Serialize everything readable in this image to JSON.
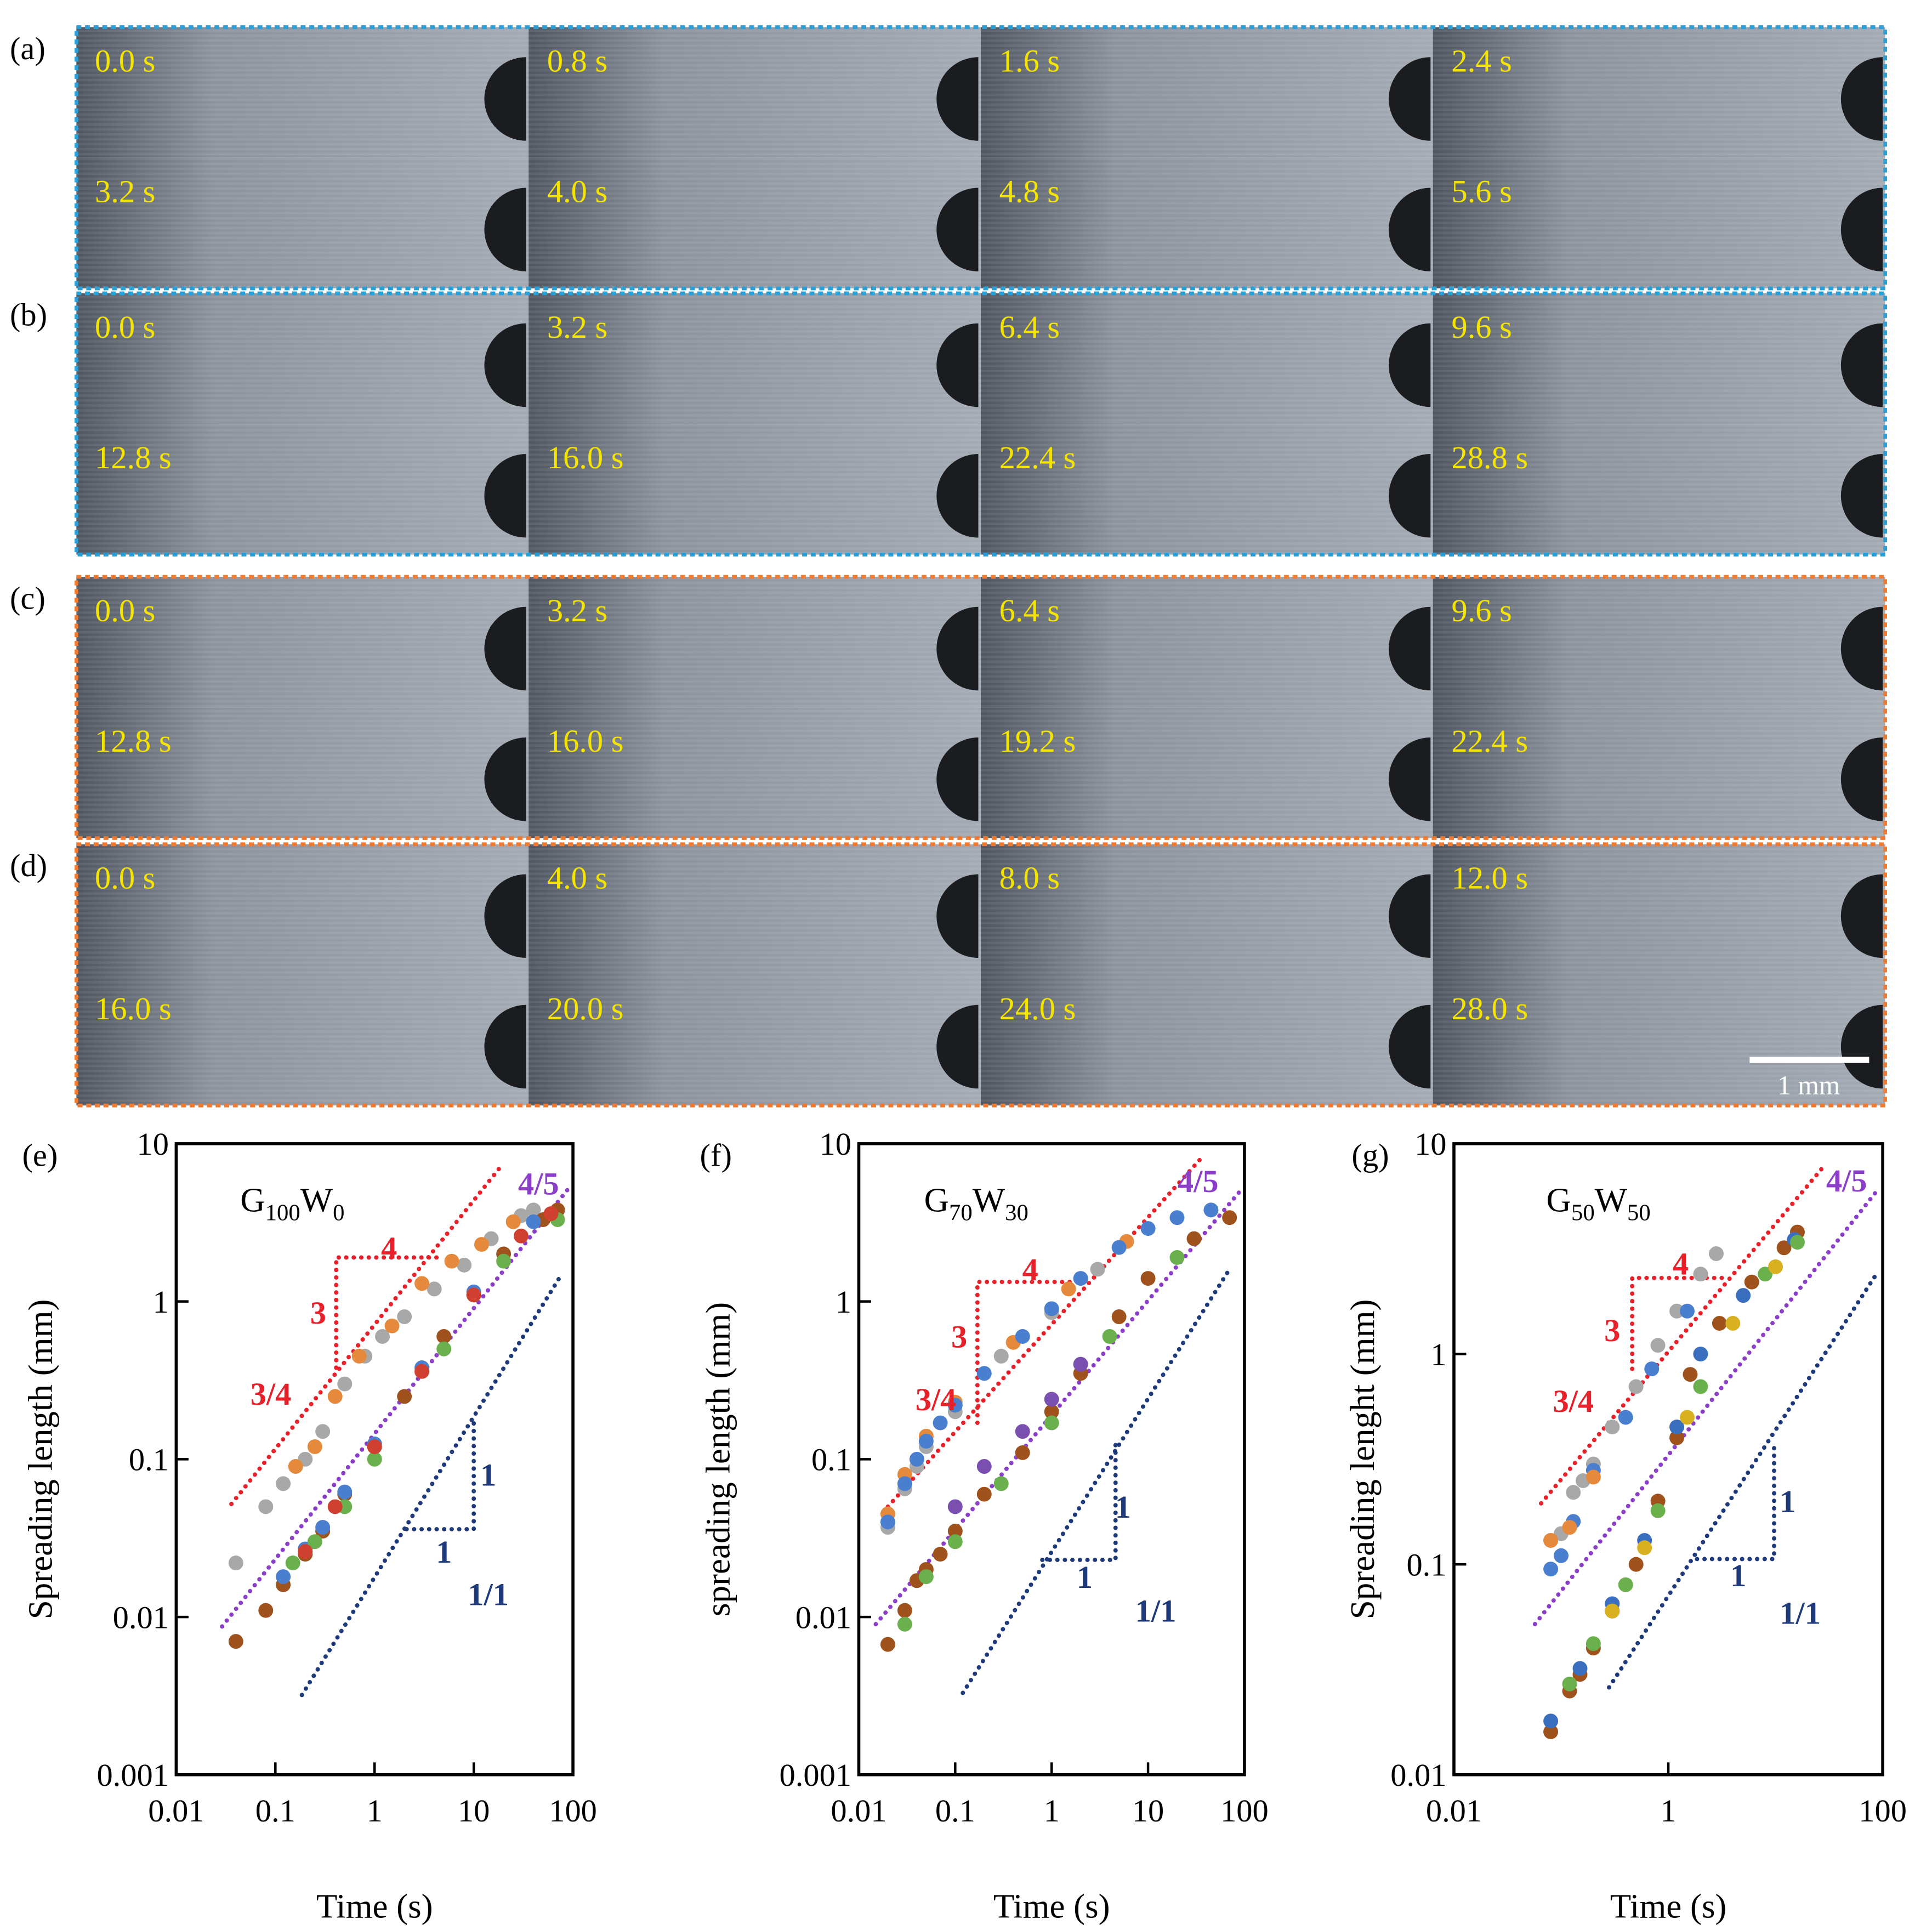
{
  "panels": [
    {
      "label": "(a)",
      "frames": [
        "0.0 s",
        "0.8 s",
        "1.6 s",
        "2.4 s",
        "3.2 s",
        "4.0 s",
        "4.8 s",
        "5.6 s"
      ],
      "border": "#2a9fd8"
    },
    {
      "label": "(b)",
      "frames": [
        "0.0 s",
        "3.2 s",
        "6.4 s",
        "9.6 s",
        "12.8 s",
        "16.0 s",
        "22.4 s",
        "28.8 s"
      ],
      "border": "#2a9fd8"
    },
    {
      "label": "(c)",
      "frames": [
        "0.0 s",
        "3.2 s",
        "6.4 s",
        "9.6 s",
        "12.8 s",
        "16.0 s",
        "19.2 s",
        "22.4 s"
      ],
      "border": "#f07a30"
    },
    {
      "label": "(d)",
      "frames": [
        "0.0 s",
        "4.0 s",
        "8.0 s",
        "12.0 s",
        "16.0 s",
        "20.0 s",
        "24.0 s",
        "28.0 s"
      ],
      "border": "#f07a30"
    }
  ],
  "scale_bar": "1 mm",
  "chart_data": [
    {
      "type": "scatter",
      "label": "(e)",
      "title": [
        "G",
        "100",
        "W",
        "0"
      ],
      "x_label": "Time (s)",
      "y_label": "Spreading length (mm)",
      "log_x": true,
      "log_y": true,
      "xlim": [
        0.01,
        100
      ],
      "ylim": [
        0.001,
        10
      ],
      "xticks": [
        0.01,
        0.1,
        1,
        10,
        100
      ],
      "yticks": [
        0.001,
        0.01,
        0.1,
        1,
        10
      ],
      "series": [
        {
          "color": "#a8a8a8",
          "x": [
            0.04,
            0.08,
            0.12,
            0.2,
            0.3,
            0.5,
            0.8,
            1.2,
            2,
            4,
            8,
            15,
            30,
            40
          ],
          "values": [
            0.022,
            0.05,
            0.07,
            0.1,
            0.15,
            0.3,
            0.45,
            0.6,
            0.8,
            1.2,
            1.7,
            2.5,
            3.5,
            3.8
          ]
        },
        {
          "color": "#e58a3c",
          "x": [
            0.16,
            0.25,
            0.4,
            0.7,
            1.5,
            3,
            6,
            12,
            25
          ],
          "values": [
            0.09,
            0.12,
            0.25,
            0.45,
            0.7,
            1.3,
            1.8,
            2.3,
            3.2
          ]
        },
        {
          "color": "#a0521d",
          "x": [
            0.04,
            0.08,
            0.12,
            0.2,
            0.3,
            0.5,
            1,
            2,
            5,
            10,
            20,
            50,
            70
          ],
          "values": [
            0.007,
            0.011,
            0.016,
            0.025,
            0.035,
            0.06,
            0.12,
            0.25,
            0.6,
            1.1,
            2,
            3.3,
            3.8
          ]
        },
        {
          "color": "#4a7fcf",
          "x": [
            0.12,
            0.2,
            0.3,
            0.5,
            1,
            3,
            10,
            40
          ],
          "values": [
            0.018,
            0.027,
            0.037,
            0.062,
            0.125,
            0.38,
            1.15,
            3.2
          ]
        },
        {
          "color": "#6ab04c",
          "x": [
            0.15,
            0.25,
            0.5,
            1,
            5,
            20,
            70
          ],
          "values": [
            0.022,
            0.03,
            0.05,
            0.1,
            0.5,
            1.8,
            3.3
          ]
        },
        {
          "color": "#d04030",
          "x": [
            0.2,
            0.4,
            1,
            3,
            10,
            30,
            60
          ],
          "values": [
            0.026,
            0.05,
            0.12,
            0.36,
            1.1,
            2.6,
            3.6
          ]
        }
      ],
      "ref_lines": [
        {
          "color": "#e8202a",
          "x": [
            0.036,
            19.5
          ],
          "y": [
            0.052,
            7.4
          ]
        },
        {
          "color": "#8b3fc8",
          "x": [
            0.029,
            88
          ],
          "y": [
            0.0087,
            5.1
          ]
        },
        {
          "color": "#1f3a7a",
          "x": [
            0.185,
            75
          ],
          "y": [
            0.0032,
            1.45
          ]
        }
      ],
      "triangles": [
        {
          "color": "#e8202a",
          "x": [
            0.41,
            0.41,
            4.3
          ],
          "y": [
            0.38,
            1.9,
            1.9
          ]
        },
        {
          "color": "#1f3a7a",
          "x": [
            2.1,
            10,
            10
          ],
          "y": [
            0.036,
            0.036,
            0.18
          ]
        }
      ],
      "annotations": [
        {
          "text": "4",
          "x": 1.4,
          "y": 2.2,
          "color": "#e8202a"
        },
        {
          "text": "3",
          "x": 0.27,
          "y": 0.85,
          "color": "#e8202a"
        },
        {
          "text": "3/4",
          "x": 0.09,
          "y": 0.26,
          "color": "#e8202a"
        },
        {
          "text": "4/5",
          "x": 45,
          "y": 5.6,
          "color": "#8b3fc8"
        },
        {
          "text": "1",
          "x": 14,
          "y": 0.08,
          "color": "#1f3a7a"
        },
        {
          "text": "1",
          "x": 5,
          "y": 0.026,
          "color": "#1f3a7a"
        },
        {
          "text": "1/1",
          "x": 14,
          "y": 0.014,
          "color": "#1f3a7a"
        }
      ]
    },
    {
      "type": "scatter",
      "label": "(f)",
      "title": [
        "G",
        "70",
        "W",
        "30"
      ],
      "x_label": "Time (s)",
      "y_label": "spreading length (mm)",
      "log_x": true,
      "log_y": true,
      "xlim": [
        0.01,
        100
      ],
      "ylim": [
        0.001,
        10
      ],
      "xticks": [
        0.01,
        0.1,
        1,
        10,
        100
      ],
      "yticks": [
        0.001,
        0.01,
        0.1,
        1,
        10
      ],
      "series": [
        {
          "color": "#a8a8a8",
          "x": [
            0.02,
            0.03,
            0.04,
            0.05,
            0.1,
            0.3,
            1,
            3
          ],
          "values": [
            0.037,
            0.065,
            0.09,
            0.12,
            0.2,
            0.45,
            0.85,
            1.6
          ]
        },
        {
          "color": "#e58a3c",
          "x": [
            0.02,
            0.03,
            0.05,
            0.1,
            0.4,
            1.5,
            6
          ],
          "values": [
            0.045,
            0.08,
            0.14,
            0.23,
            0.55,
            1.2,
            2.4
          ]
        },
        {
          "color": "#4a7fcf",
          "x": [
            0.02,
            0.03,
            0.04,
            0.05,
            0.07,
            0.1,
            0.2,
            0.5,
            1,
            2,
            5,
            10,
            20,
            45
          ],
          "values": [
            0.04,
            0.07,
            0.1,
            0.13,
            0.17,
            0.22,
            0.35,
            0.6,
            0.9,
            1.4,
            2.2,
            2.9,
            3.4,
            3.8
          ]
        },
        {
          "color": "#a0521d",
          "x": [
            0.02,
            0.03,
            0.04,
            0.05,
            0.07,
            0.1,
            0.2,
            0.5,
            1,
            2,
            5,
            10,
            30,
            70
          ],
          "values": [
            0.0067,
            0.011,
            0.017,
            0.02,
            0.025,
            0.035,
            0.06,
            0.11,
            0.2,
            0.35,
            0.8,
            1.4,
            2.5,
            3.4
          ]
        },
        {
          "color": "#6ab04c",
          "x": [
            0.03,
            0.05,
            0.1,
            0.3,
            1,
            4,
            20
          ],
          "values": [
            0.009,
            0.018,
            0.03,
            0.07,
            0.17,
            0.6,
            1.9
          ]
        },
        {
          "color": "#7a4fb0",
          "x": [
            0.1,
            0.2,
            0.5,
            1,
            2
          ],
          "values": [
            0.05,
            0.09,
            0.15,
            0.24,
            0.4
          ]
        }
      ],
      "ref_lines": [
        {
          "color": "#e8202a",
          "x": [
            0.02,
            35
          ],
          "y": [
            0.05,
            8
          ]
        },
        {
          "color": "#8b3fc8",
          "x": [
            0.015,
            90
          ],
          "y": [
            0.009,
            5
          ]
        },
        {
          "color": "#1f3a7a",
          "x": [
            0.12,
            70
          ],
          "y": [
            0.0033,
            1.6
          ]
        }
      ],
      "triangles": [
        {
          "color": "#e8202a",
          "x": [
            0.17,
            0.17,
            2.1
          ],
          "y": [
            0.17,
            1.33,
            1.33
          ]
        },
        {
          "color": "#1f3a7a",
          "x": [
            0.8,
            4.6,
            4.6
          ],
          "y": [
            0.023,
            0.023,
            0.13
          ]
        }
      ],
      "annotations": [
        {
          "text": "4",
          "x": 0.6,
          "y": 1.6,
          "color": "#e8202a"
        },
        {
          "text": "3",
          "x": 0.11,
          "y": 0.6,
          "color": "#e8202a"
        },
        {
          "text": "3/4",
          "x": 0.063,
          "y": 0.24,
          "color": "#e8202a"
        },
        {
          "text": "4/5",
          "x": 33,
          "y": 5.8,
          "color": "#8b3fc8"
        },
        {
          "text": "1",
          "x": 5.5,
          "y": 0.05,
          "color": "#1f3a7a"
        },
        {
          "text": "1",
          "x": 2.2,
          "y": 0.018,
          "color": "#1f3a7a"
        },
        {
          "text": "1/1",
          "x": 12,
          "y": 0.011,
          "color": "#1f3a7a"
        }
      ]
    },
    {
      "type": "scatter",
      "label": "(g)",
      "title": [
        "G",
        "50",
        "W",
        "50"
      ],
      "x_label": "Time (s)",
      "y_label": "Spreading lenght (mm)",
      "log_x": true,
      "log_y": true,
      "xlim": [
        0.01,
        100
      ],
      "ylim": [
        0.01,
        10
      ],
      "xticks": [
        0.01,
        1,
        100
      ],
      "yticks": [
        0.01,
        0.1,
        1,
        10
      ],
      "series": [
        {
          "color": "#a8a8a8",
          "x": [
            0.08,
            0.1,
            0.13,
            0.16,
            0.2,
            0.3,
            0.5,
            0.8,
            1.2,
            2,
            2.8
          ],
          "values": [
            0.13,
            0.14,
            0.22,
            0.25,
            0.3,
            0.45,
            0.7,
            1.1,
            1.6,
            2.4,
            3
          ]
        },
        {
          "color": "#4a7fcf",
          "x": [
            0.08,
            0.1,
            0.13,
            0.2,
            0.4,
            0.7,
            1.5
          ],
          "values": [
            0.095,
            0.11,
            0.16,
            0.28,
            0.5,
            0.85,
            1.6
          ]
        },
        {
          "color": "#e58a3c",
          "x": [
            0.08,
            0.12,
            0.2
          ],
          "values": [
            0.13,
            0.15,
            0.26
          ]
        },
        {
          "color": "#a0521d",
          "x": [
            0.08,
            0.12,
            0.15,
            0.2,
            0.3,
            0.5,
            0.8,
            1.2,
            1.6,
            3,
            6,
            12,
            16
          ],
          "values": [
            0.016,
            0.025,
            0.03,
            0.04,
            0.06,
            0.1,
            0.2,
            0.4,
            0.8,
            1.4,
            2.2,
            3.2,
            3.8
          ]
        },
        {
          "color": "#3a6fbf",
          "x": [
            0.08,
            0.15,
            0.3,
            0.6,
            1.2,
            2,
            5,
            15
          ],
          "values": [
            0.018,
            0.032,
            0.065,
            0.13,
            0.45,
            1,
            1.9,
            3.5
          ]
        },
        {
          "color": "#6ab04c",
          "x": [
            0.12,
            0.2,
            0.4,
            0.8,
            2,
            8,
            16
          ],
          "values": [
            0.027,
            0.042,
            0.08,
            0.18,
            0.7,
            2.4,
            3.4
          ]
        },
        {
          "color": "#d8b020",
          "x": [
            0.3,
            0.6,
            1.5,
            4,
            10
          ],
          "values": [
            0.06,
            0.12,
            0.5,
            1.4,
            2.6
          ]
        }
      ],
      "ref_lines": [
        {
          "color": "#e8202a",
          "x": [
            0.065,
            27
          ],
          "y": [
            0.195,
            7.6
          ]
        },
        {
          "color": "#8b3fc8",
          "x": [
            0.057,
            89
          ],
          "y": [
            0.052,
            6
          ]
        },
        {
          "color": "#1f3a7a",
          "x": [
            0.28,
            85
          ],
          "y": [
            0.026,
            2.35
          ]
        }
      ],
      "triangles": [
        {
          "color": "#e8202a",
          "x": [
            0.46,
            0.46,
            3.6
          ],
          "y": [
            0.85,
            2.3,
            2.3
          ]
        },
        {
          "color": "#1f3a7a",
          "x": [
            1.85,
            9.7,
            9.7
          ],
          "y": [
            0.106,
            0.106,
            0.38
          ]
        }
      ],
      "annotations": [
        {
          "text": "4",
          "x": 1.3,
          "y": 2.7,
          "color": "#e8202a"
        },
        {
          "text": "3",
          "x": 0.3,
          "y": 1.3,
          "color": "#e8202a"
        },
        {
          "text": "3/4",
          "x": 0.13,
          "y": 0.6,
          "color": "#e8202a"
        },
        {
          "text": "4/5",
          "x": 46,
          "y": 6.7,
          "color": "#8b3fc8"
        },
        {
          "text": "1",
          "x": 13,
          "y": 0.2,
          "color": "#1f3a7a"
        },
        {
          "text": "1",
          "x": 4.5,
          "y": 0.089,
          "color": "#1f3a7a"
        },
        {
          "text": "1/1",
          "x": 17,
          "y": 0.059,
          "color": "#1f3a7a"
        }
      ]
    }
  ]
}
